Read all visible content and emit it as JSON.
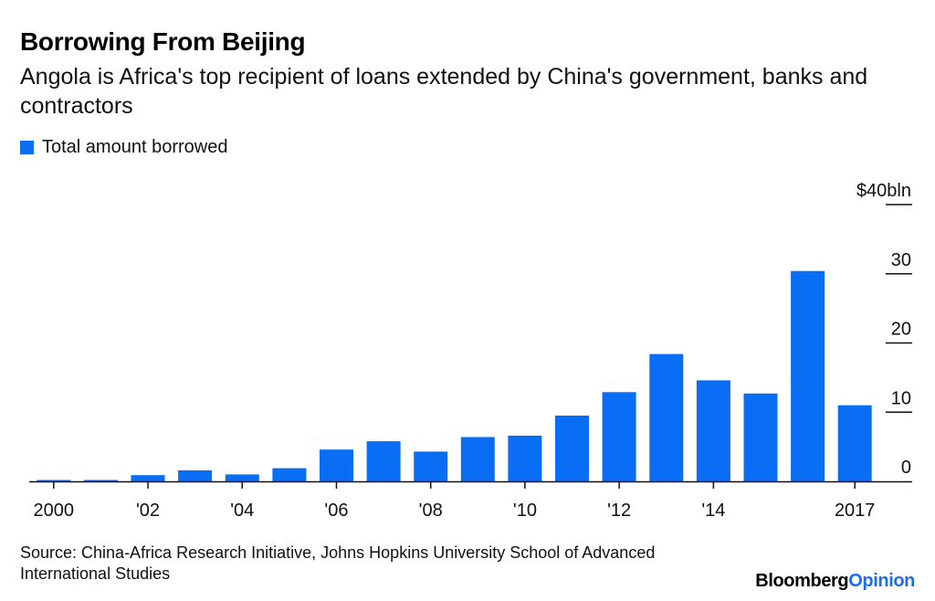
{
  "colors": {
    "bar": "#0a6ef5",
    "axis": "#111111"
  },
  "chart_data": {
    "type": "bar",
    "title": "Borrowing From Beijing",
    "subtitle": "Angola is Africa's top recipient of loans extended by China's government, banks and contractors",
    "legend": [
      "Total amount borrowed"
    ],
    "categories": [
      "2000",
      "2001",
      "2002",
      "2003",
      "2004",
      "2005",
      "2006",
      "2007",
      "2008",
      "2009",
      "2010",
      "2011",
      "2012",
      "2013",
      "2014",
      "2015",
      "2016",
      "2017"
    ],
    "x_tick_labels": [
      {
        "year": "2000",
        "label": "2000"
      },
      {
        "year": "2002",
        "label": "'02"
      },
      {
        "year": "2004",
        "label": "'04"
      },
      {
        "year": "2006",
        "label": "'06"
      },
      {
        "year": "2008",
        "label": "'08"
      },
      {
        "year": "2010",
        "label": "'10"
      },
      {
        "year": "2012",
        "label": "'12"
      },
      {
        "year": "2014",
        "label": "'14"
      },
      {
        "year": "2017",
        "label": "2017"
      }
    ],
    "series": [
      {
        "name": "Total amount borrowed",
        "values": [
          0.2,
          0.2,
          0.9,
          1.6,
          1.0,
          1.9,
          4.6,
          5.8,
          4.3,
          6.4,
          6.6,
          9.5,
          12.9,
          18.4,
          14.6,
          12.7,
          30.4,
          11.0
        ]
      }
    ],
    "y_ticks": [
      {
        "value": 40,
        "label": "$40bln"
      },
      {
        "value": 30,
        "label": "30"
      },
      {
        "value": 20,
        "label": "20"
      },
      {
        "value": 10,
        "label": "10"
      },
      {
        "value": 0,
        "label": "0"
      }
    ],
    "ylim": [
      0,
      40
    ],
    "y_axis_position": "right",
    "grid": false
  },
  "source": "Source: China-Africa Research Initiative, Johns Hopkins University School of Advanced International Studies",
  "brand": {
    "part1": "Bloomberg",
    "part2": "Opinion"
  }
}
